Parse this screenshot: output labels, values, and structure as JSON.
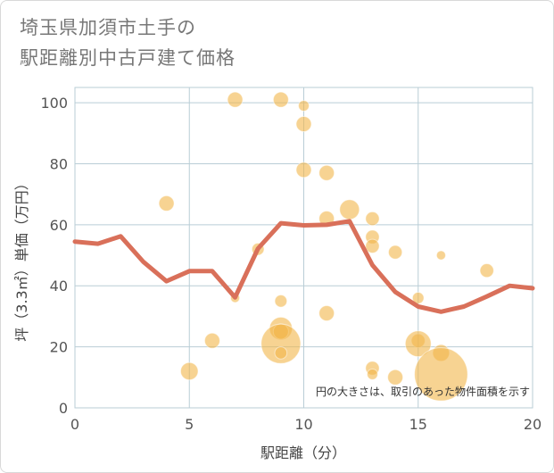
{
  "title_line1": "埼玉県加須市土手の",
  "title_line2": "駅距離別中古戸建て価格",
  "colors": {
    "line": "#d9705a",
    "bubble": "#f2b54a",
    "grid": "#b9cdd6",
    "plot_bg": "#ffffff",
    "frame": "#d9d9d9"
  },
  "chart_data": {
    "type": "scatter",
    "xlabel": "駅距離（分）",
    "ylabel": "坪（3.3㎡）単価（万円）",
    "xlim": [
      0,
      20
    ],
    "ylim": [
      0,
      105
    ],
    "xticks": [
      0,
      5,
      10,
      15,
      20
    ],
    "yticks": [
      0,
      20,
      40,
      60,
      80,
      100
    ],
    "grid": true,
    "note": "円の大きさは、取引のあった物件面積を示す",
    "line": {
      "x": [
        0,
        1,
        2,
        3,
        4,
        5,
        6,
        7,
        8,
        9,
        10,
        11,
        12,
        13,
        14,
        15,
        16,
        17,
        18,
        19,
        20
      ],
      "y": [
        54.5,
        53.8,
        56.2,
        47.8,
        41.5,
        44.8,
        44.8,
        36.2,
        52.2,
        60.5,
        59.8,
        60.0,
        61.2,
        46.8,
        38.0,
        33.2,
        31.5,
        33.2,
        36.5,
        40.0,
        39.2
      ]
    },
    "bubbles": [
      {
        "x": 4,
        "y": 67,
        "size": 1.0
      },
      {
        "x": 5,
        "y": 12,
        "size": 1.15
      },
      {
        "x": 6,
        "y": 22,
        "size": 1.0
      },
      {
        "x": 7,
        "y": 101,
        "size": 1.0
      },
      {
        "x": 7,
        "y": 36,
        "size": 0.6
      },
      {
        "x": 8,
        "y": 52,
        "size": 0.8
      },
      {
        "x": 9,
        "y": 101,
        "size": 1.0
      },
      {
        "x": 9,
        "y": 35,
        "size": 0.8
      },
      {
        "x": 9,
        "y": 26,
        "size": 1.5
      },
      {
        "x": 9,
        "y": 25,
        "size": 1.0
      },
      {
        "x": 9,
        "y": 21,
        "size": 2.6
      },
      {
        "x": 9,
        "y": 18,
        "size": 0.8
      },
      {
        "x": 10,
        "y": 99,
        "size": 0.7
      },
      {
        "x": 10,
        "y": 93,
        "size": 1.0
      },
      {
        "x": 10,
        "y": 78,
        "size": 1.0
      },
      {
        "x": 11,
        "y": 77,
        "size": 1.0
      },
      {
        "x": 11,
        "y": 62,
        "size": 1.0
      },
      {
        "x": 11,
        "y": 31,
        "size": 1.0
      },
      {
        "x": 12,
        "y": 65,
        "size": 1.3
      },
      {
        "x": 13,
        "y": 62,
        "size": 0.9
      },
      {
        "x": 13,
        "y": 56,
        "size": 0.9
      },
      {
        "x": 13,
        "y": 53,
        "size": 0.9
      },
      {
        "x": 13,
        "y": 13,
        "size": 0.9
      },
      {
        "x": 13,
        "y": 11,
        "size": 0.7
      },
      {
        "x": 14,
        "y": 51,
        "size": 0.9
      },
      {
        "x": 14,
        "y": 10,
        "size": 1.0
      },
      {
        "x": 15,
        "y": 36,
        "size": 0.75
      },
      {
        "x": 15,
        "y": 22,
        "size": 0.9
      },
      {
        "x": 15,
        "y": 21,
        "size": 1.7
      },
      {
        "x": 16,
        "y": 50,
        "size": 0.6
      },
      {
        "x": 16,
        "y": 18,
        "size": 1.1
      },
      {
        "x": 16,
        "y": 11,
        "size": 3.5
      },
      {
        "x": 18,
        "y": 45,
        "size": 0.9
      }
    ]
  }
}
